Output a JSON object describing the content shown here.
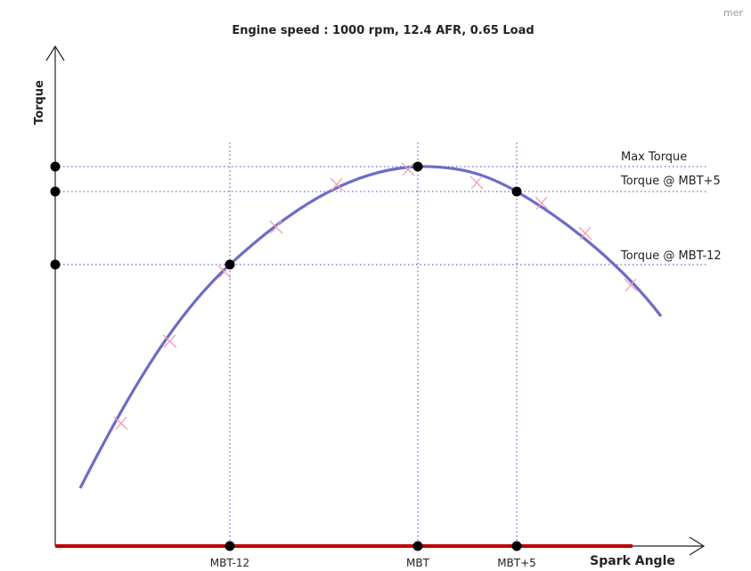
{
  "header": {
    "title": "Engine speed : 1000 rpm, 12.4 AFR, 0.65 Load",
    "corner_text": "mer"
  },
  "axes": {
    "y_label": "Torque",
    "x_label": "Spark Angle"
  },
  "reference_lines": {
    "max_torque": "Max Torque",
    "torque_mbt_plus_5": "Torque @ MBT+5",
    "torque_mbt_minus_12": "Torque @ MBT-12"
  },
  "x_markers": {
    "mbt_minus_12": "MBT-12",
    "mbt": "MBT",
    "mbt_plus_5": "MBT+5"
  }
}
